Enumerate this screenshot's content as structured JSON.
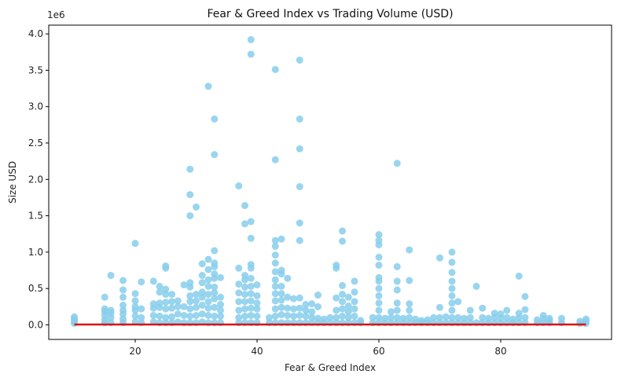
{
  "chart_data": {
    "type": "scatter",
    "title": "Fear & Greed Index vs Trading Volume (USD)",
    "xlabel": "Fear & Greed Index",
    "ylabel": "Size USD",
    "y_offset_label": "1e6",
    "xlim": [
      5.8,
      98.2
    ],
    "ylim": [
      -200000,
      4120000
    ],
    "x_ticks": [
      20,
      40,
      60,
      80
    ],
    "x_tick_labels": [
      "20",
      "40",
      "60",
      "80"
    ],
    "y_ticks": [
      0,
      500000,
      1000000,
      1500000,
      2000000,
      2500000,
      3000000,
      3500000,
      4000000
    ],
    "y_tick_labels": [
      "0.0",
      "0.5",
      "1.0",
      "1.5",
      "2.0",
      "2.5",
      "3.0",
      "3.5",
      "4.0"
    ],
    "grid": false,
    "legend": "none",
    "colors": {
      "points": "#87ceeb",
      "trend": "#dd1111"
    },
    "trend_line": {
      "x": [
        10,
        94
      ],
      "y": [
        5000,
        5000
      ]
    },
    "points": [
      {
        "x": 10,
        "y": 20000
      },
      {
        "x": 10,
        "y": 50000
      },
      {
        "x": 10,
        "y": 80000
      },
      {
        "x": 10,
        "y": 110000
      },
      {
        "x": 15,
        "y": 30000
      },
      {
        "x": 15,
        "y": 70000
      },
      {
        "x": 15,
        "y": 130000
      },
      {
        "x": 15,
        "y": 180000
      },
      {
        "x": 15,
        "y": 220000
      },
      {
        "x": 15,
        "y": 380000
      },
      {
        "x": 16,
        "y": 30000
      },
      {
        "x": 16,
        "y": 100000
      },
      {
        "x": 16,
        "y": 160000
      },
      {
        "x": 16,
        "y": 200000
      },
      {
        "x": 16,
        "y": 680000
      },
      {
        "x": 18,
        "y": 30000
      },
      {
        "x": 18,
        "y": 80000
      },
      {
        "x": 18,
        "y": 150000
      },
      {
        "x": 18,
        "y": 200000
      },
      {
        "x": 18,
        "y": 270000
      },
      {
        "x": 18,
        "y": 380000
      },
      {
        "x": 18,
        "y": 480000
      },
      {
        "x": 18,
        "y": 610000
      },
      {
        "x": 20,
        "y": 40000
      },
      {
        "x": 20,
        "y": 120000
      },
      {
        "x": 20,
        "y": 200000
      },
      {
        "x": 20,
        "y": 250000
      },
      {
        "x": 20,
        "y": 330000
      },
      {
        "x": 20,
        "y": 430000
      },
      {
        "x": 20,
        "y": 1120000
      },
      {
        "x": 21,
        "y": 30000
      },
      {
        "x": 21,
        "y": 100000
      },
      {
        "x": 21,
        "y": 220000
      },
      {
        "x": 21,
        "y": 590000
      },
      {
        "x": 23,
        "y": 40000
      },
      {
        "x": 23,
        "y": 130000
      },
      {
        "x": 23,
        "y": 230000
      },
      {
        "x": 23,
        "y": 290000
      },
      {
        "x": 23,
        "y": 600000
      },
      {
        "x": 24,
        "y": 30000
      },
      {
        "x": 24,
        "y": 120000
      },
      {
        "x": 24,
        "y": 240000
      },
      {
        "x": 24,
        "y": 300000
      },
      {
        "x": 24,
        "y": 450000
      },
      {
        "x": 24,
        "y": 530000
      },
      {
        "x": 25,
        "y": 30000
      },
      {
        "x": 25,
        "y": 100000
      },
      {
        "x": 25,
        "y": 220000
      },
      {
        "x": 25,
        "y": 310000
      },
      {
        "x": 25,
        "y": 420000
      },
      {
        "x": 25,
        "y": 490000
      },
      {
        "x": 25,
        "y": 780000
      },
      {
        "x": 25,
        "y": 810000
      },
      {
        "x": 26,
        "y": 30000
      },
      {
        "x": 26,
        "y": 110000
      },
      {
        "x": 26,
        "y": 230000
      },
      {
        "x": 26,
        "y": 320000
      },
      {
        "x": 26,
        "y": 420000
      },
      {
        "x": 27,
        "y": 40000
      },
      {
        "x": 27,
        "y": 150000
      },
      {
        "x": 27,
        "y": 250000
      },
      {
        "x": 27,
        "y": 330000
      },
      {
        "x": 28,
        "y": 30000
      },
      {
        "x": 28,
        "y": 130000
      },
      {
        "x": 28,
        "y": 250000
      },
      {
        "x": 28,
        "y": 550000
      },
      {
        "x": 29,
        "y": 30000
      },
      {
        "x": 29,
        "y": 120000
      },
      {
        "x": 29,
        "y": 220000
      },
      {
        "x": 29,
        "y": 320000
      },
      {
        "x": 29,
        "y": 400000
      },
      {
        "x": 29,
        "y": 520000
      },
      {
        "x": 29,
        "y": 580000
      },
      {
        "x": 29,
        "y": 1500000
      },
      {
        "x": 29,
        "y": 1790000
      },
      {
        "x": 29,
        "y": 2140000
      },
      {
        "x": 30,
        "y": 30000
      },
      {
        "x": 30,
        "y": 130000
      },
      {
        "x": 30,
        "y": 240000
      },
      {
        "x": 30,
        "y": 330000
      },
      {
        "x": 30,
        "y": 420000
      },
      {
        "x": 30,
        "y": 1620000
      },
      {
        "x": 31,
        "y": 40000
      },
      {
        "x": 31,
        "y": 150000
      },
      {
        "x": 31,
        "y": 270000
      },
      {
        "x": 31,
        "y": 380000
      },
      {
        "x": 31,
        "y": 450000
      },
      {
        "x": 31,
        "y": 580000
      },
      {
        "x": 31,
        "y": 680000
      },
      {
        "x": 31,
        "y": 840000
      },
      {
        "x": 32,
        "y": 30000
      },
      {
        "x": 32,
        "y": 130000
      },
      {
        "x": 32,
        "y": 230000
      },
      {
        "x": 32,
        "y": 320000
      },
      {
        "x": 32,
        "y": 420000
      },
      {
        "x": 32,
        "y": 530000
      },
      {
        "x": 32,
        "y": 620000
      },
      {
        "x": 32,
        "y": 760000
      },
      {
        "x": 32,
        "y": 900000
      },
      {
        "x": 32,
        "y": 3280000
      },
      {
        "x": 33,
        "y": 30000
      },
      {
        "x": 33,
        "y": 120000
      },
      {
        "x": 33,
        "y": 240000
      },
      {
        "x": 33,
        "y": 360000
      },
      {
        "x": 33,
        "y": 440000
      },
      {
        "x": 33,
        "y": 520000
      },
      {
        "x": 33,
        "y": 640000
      },
      {
        "x": 33,
        "y": 700000
      },
      {
        "x": 33,
        "y": 800000
      },
      {
        "x": 33,
        "y": 850000
      },
      {
        "x": 33,
        "y": 1020000
      },
      {
        "x": 33,
        "y": 2340000
      },
      {
        "x": 33,
        "y": 2830000
      },
      {
        "x": 34,
        "y": 30000
      },
      {
        "x": 34,
        "y": 120000
      },
      {
        "x": 34,
        "y": 200000
      },
      {
        "x": 34,
        "y": 280000
      },
      {
        "x": 34,
        "y": 380000
      },
      {
        "x": 34,
        "y": 650000
      },
      {
        "x": 37,
        "y": 30000
      },
      {
        "x": 37,
        "y": 100000
      },
      {
        "x": 37,
        "y": 200000
      },
      {
        "x": 37,
        "y": 320000
      },
      {
        "x": 37,
        "y": 440000
      },
      {
        "x": 37,
        "y": 560000
      },
      {
        "x": 37,
        "y": 780000
      },
      {
        "x": 37,
        "y": 1910000
      },
      {
        "x": 38,
        "y": 30000
      },
      {
        "x": 38,
        "y": 120000
      },
      {
        "x": 38,
        "y": 220000
      },
      {
        "x": 38,
        "y": 320000
      },
      {
        "x": 38,
        "y": 420000
      },
      {
        "x": 38,
        "y": 520000
      },
      {
        "x": 38,
        "y": 620000
      },
      {
        "x": 38,
        "y": 680000
      },
      {
        "x": 38,
        "y": 1390000
      },
      {
        "x": 38,
        "y": 1640000
      },
      {
        "x": 39,
        "y": 30000
      },
      {
        "x": 39,
        "y": 130000
      },
      {
        "x": 39,
        "y": 230000
      },
      {
        "x": 39,
        "y": 330000
      },
      {
        "x": 39,
        "y": 430000
      },
      {
        "x": 39,
        "y": 530000
      },
      {
        "x": 39,
        "y": 640000
      },
      {
        "x": 39,
        "y": 780000
      },
      {
        "x": 39,
        "y": 830000
      },
      {
        "x": 39,
        "y": 1190000
      },
      {
        "x": 39,
        "y": 1420000
      },
      {
        "x": 39,
        "y": 3720000
      },
      {
        "x": 39,
        "y": 3920000
      },
      {
        "x": 40,
        "y": 30000
      },
      {
        "x": 40,
        "y": 120000
      },
      {
        "x": 40,
        "y": 220000
      },
      {
        "x": 40,
        "y": 300000
      },
      {
        "x": 40,
        "y": 400000
      },
      {
        "x": 40,
        "y": 550000
      },
      {
        "x": 42,
        "y": 30000
      },
      {
        "x": 42,
        "y": 100000
      },
      {
        "x": 43,
        "y": 30000
      },
      {
        "x": 43,
        "y": 120000
      },
      {
        "x": 43,
        "y": 220000
      },
      {
        "x": 43,
        "y": 330000
      },
      {
        "x": 43,
        "y": 430000
      },
      {
        "x": 43,
        "y": 530000
      },
      {
        "x": 43,
        "y": 620000
      },
      {
        "x": 43,
        "y": 730000
      },
      {
        "x": 43,
        "y": 850000
      },
      {
        "x": 43,
        "y": 960000
      },
      {
        "x": 43,
        "y": 1080000
      },
      {
        "x": 43,
        "y": 1160000
      },
      {
        "x": 43,
        "y": 2270000
      },
      {
        "x": 43,
        "y": 3510000
      },
      {
        "x": 44,
        "y": 30000
      },
      {
        "x": 44,
        "y": 140000
      },
      {
        "x": 44,
        "y": 240000
      },
      {
        "x": 44,
        "y": 340000
      },
      {
        "x": 44,
        "y": 430000
      },
      {
        "x": 44,
        "y": 530000
      },
      {
        "x": 44,
        "y": 700000
      },
      {
        "x": 44,
        "y": 750000
      },
      {
        "x": 44,
        "y": 1180000
      },
      {
        "x": 45,
        "y": 30000
      },
      {
        "x": 45,
        "y": 130000
      },
      {
        "x": 45,
        "y": 230000
      },
      {
        "x": 45,
        "y": 380000
      },
      {
        "x": 45,
        "y": 640000
      },
      {
        "x": 46,
        "y": 30000
      },
      {
        "x": 46,
        "y": 120000
      },
      {
        "x": 46,
        "y": 220000
      },
      {
        "x": 46,
        "y": 360000
      },
      {
        "x": 47,
        "y": 30000
      },
      {
        "x": 47,
        "y": 130000
      },
      {
        "x": 47,
        "y": 230000
      },
      {
        "x": 47,
        "y": 370000
      },
      {
        "x": 47,
        "y": 1160000
      },
      {
        "x": 47,
        "y": 1400000
      },
      {
        "x": 47,
        "y": 1900000
      },
      {
        "x": 47,
        "y": 2420000
      },
      {
        "x": 47,
        "y": 2830000
      },
      {
        "x": 47,
        "y": 3640000
      },
      {
        "x": 48,
        "y": 30000
      },
      {
        "x": 48,
        "y": 120000
      },
      {
        "x": 48,
        "y": 200000
      },
      {
        "x": 48,
        "y": 280000
      },
      {
        "x": 49,
        "y": 30000
      },
      {
        "x": 49,
        "y": 100000
      },
      {
        "x": 49,
        "y": 180000
      },
      {
        "x": 49,
        "y": 290000
      },
      {
        "x": 50,
        "y": 30000
      },
      {
        "x": 50,
        "y": 90000
      },
      {
        "x": 50,
        "y": 250000
      },
      {
        "x": 50,
        "y": 410000
      },
      {
        "x": 51,
        "y": 30000
      },
      {
        "x": 51,
        "y": 80000
      },
      {
        "x": 52,
        "y": 30000
      },
      {
        "x": 52,
        "y": 100000
      },
      {
        "x": 53,
        "y": 30000
      },
      {
        "x": 53,
        "y": 100000
      },
      {
        "x": 53,
        "y": 200000
      },
      {
        "x": 53,
        "y": 370000
      },
      {
        "x": 53,
        "y": 780000
      },
      {
        "x": 53,
        "y": 820000
      },
      {
        "x": 54,
        "y": 30000
      },
      {
        "x": 54,
        "y": 120000
      },
      {
        "x": 54,
        "y": 220000
      },
      {
        "x": 54,
        "y": 320000
      },
      {
        "x": 54,
        "y": 420000
      },
      {
        "x": 54,
        "y": 540000
      },
      {
        "x": 54,
        "y": 1150000
      },
      {
        "x": 54,
        "y": 1290000
      },
      {
        "x": 55,
        "y": 30000
      },
      {
        "x": 55,
        "y": 100000
      },
      {
        "x": 55,
        "y": 180000
      },
      {
        "x": 55,
        "y": 260000
      },
      {
        "x": 55,
        "y": 380000
      },
      {
        "x": 56,
        "y": 30000
      },
      {
        "x": 56,
        "y": 120000
      },
      {
        "x": 56,
        "y": 220000
      },
      {
        "x": 56,
        "y": 320000
      },
      {
        "x": 56,
        "y": 450000
      },
      {
        "x": 56,
        "y": 600000
      },
      {
        "x": 57,
        "y": 30000
      },
      {
        "x": 57,
        "y": 60000
      },
      {
        "x": 59,
        "y": 30000
      },
      {
        "x": 59,
        "y": 100000
      },
      {
        "x": 60,
        "y": 30000
      },
      {
        "x": 60,
        "y": 100000
      },
      {
        "x": 60,
        "y": 200000
      },
      {
        "x": 60,
        "y": 300000
      },
      {
        "x": 60,
        "y": 400000
      },
      {
        "x": 60,
        "y": 500000
      },
      {
        "x": 60,
        "y": 600000
      },
      {
        "x": 60,
        "y": 650000
      },
      {
        "x": 60,
        "y": 820000
      },
      {
        "x": 60,
        "y": 930000
      },
      {
        "x": 60,
        "y": 1100000
      },
      {
        "x": 60,
        "y": 1160000
      },
      {
        "x": 60,
        "y": 1240000
      },
      {
        "x": 61,
        "y": 30000
      },
      {
        "x": 61,
        "y": 90000
      },
      {
        "x": 62,
        "y": 30000
      },
      {
        "x": 62,
        "y": 100000
      },
      {
        "x": 62,
        "y": 180000
      },
      {
        "x": 63,
        "y": 30000
      },
      {
        "x": 63,
        "y": 100000
      },
      {
        "x": 63,
        "y": 200000
      },
      {
        "x": 63,
        "y": 300000
      },
      {
        "x": 63,
        "y": 480000
      },
      {
        "x": 63,
        "y": 600000
      },
      {
        "x": 63,
        "y": 800000
      },
      {
        "x": 63,
        "y": 2220000
      },
      {
        "x": 64,
        "y": 30000
      },
      {
        "x": 64,
        "y": 90000
      },
      {
        "x": 65,
        "y": 30000
      },
      {
        "x": 65,
        "y": 100000
      },
      {
        "x": 65,
        "y": 200000
      },
      {
        "x": 65,
        "y": 290000
      },
      {
        "x": 65,
        "y": 610000
      },
      {
        "x": 65,
        "y": 1030000
      },
      {
        "x": 66,
        "y": 30000
      },
      {
        "x": 66,
        "y": 80000
      },
      {
        "x": 67,
        "y": 30000
      },
      {
        "x": 67,
        "y": 60000
      },
      {
        "x": 68,
        "y": 30000
      },
      {
        "x": 68,
        "y": 70000
      },
      {
        "x": 69,
        "y": 30000
      },
      {
        "x": 69,
        "y": 100000
      },
      {
        "x": 70,
        "y": 30000
      },
      {
        "x": 70,
        "y": 100000
      },
      {
        "x": 70,
        "y": 240000
      },
      {
        "x": 70,
        "y": 920000
      },
      {
        "x": 71,
        "y": 30000
      },
      {
        "x": 71,
        "y": 110000
      },
      {
        "x": 72,
        "y": 30000
      },
      {
        "x": 72,
        "y": 100000
      },
      {
        "x": 72,
        "y": 200000
      },
      {
        "x": 72,
        "y": 300000
      },
      {
        "x": 72,
        "y": 400000
      },
      {
        "x": 72,
        "y": 500000
      },
      {
        "x": 72,
        "y": 600000
      },
      {
        "x": 72,
        "y": 720000
      },
      {
        "x": 72,
        "y": 860000
      },
      {
        "x": 72,
        "y": 1000000
      },
      {
        "x": 73,
        "y": 30000
      },
      {
        "x": 73,
        "y": 100000
      },
      {
        "x": 73,
        "y": 320000
      },
      {
        "x": 74,
        "y": 30000
      },
      {
        "x": 74,
        "y": 90000
      },
      {
        "x": 75,
        "y": 30000
      },
      {
        "x": 75,
        "y": 100000
      },
      {
        "x": 75,
        "y": 200000
      },
      {
        "x": 76,
        "y": 30000
      },
      {
        "x": 76,
        "y": 530000
      },
      {
        "x": 77,
        "y": 30000
      },
      {
        "x": 77,
        "y": 100000
      },
      {
        "x": 77,
        "y": 230000
      },
      {
        "x": 78,
        "y": 30000
      },
      {
        "x": 78,
        "y": 90000
      },
      {
        "x": 79,
        "y": 30000
      },
      {
        "x": 79,
        "y": 100000
      },
      {
        "x": 79,
        "y": 160000
      },
      {
        "x": 80,
        "y": 30000
      },
      {
        "x": 80,
        "y": 90000
      },
      {
        "x": 80,
        "y": 150000
      },
      {
        "x": 81,
        "y": 30000
      },
      {
        "x": 81,
        "y": 100000
      },
      {
        "x": 81,
        "y": 200000
      },
      {
        "x": 82,
        "y": 30000
      },
      {
        "x": 82,
        "y": 80000
      },
      {
        "x": 83,
        "y": 30000
      },
      {
        "x": 83,
        "y": 100000
      },
      {
        "x": 83,
        "y": 160000
      },
      {
        "x": 83,
        "y": 670000
      },
      {
        "x": 84,
        "y": 30000
      },
      {
        "x": 84,
        "y": 100000
      },
      {
        "x": 84,
        "y": 210000
      },
      {
        "x": 84,
        "y": 390000
      },
      {
        "x": 86,
        "y": 30000
      },
      {
        "x": 86,
        "y": 70000
      },
      {
        "x": 87,
        "y": 30000
      },
      {
        "x": 87,
        "y": 80000
      },
      {
        "x": 87,
        "y": 130000
      },
      {
        "x": 88,
        "y": 30000
      },
      {
        "x": 88,
        "y": 60000
      },
      {
        "x": 88,
        "y": 90000
      },
      {
        "x": 90,
        "y": 30000
      },
      {
        "x": 90,
        "y": 90000
      },
      {
        "x": 93,
        "y": 20000
      },
      {
        "x": 93,
        "y": 50000
      },
      {
        "x": 94,
        "y": 20000
      },
      {
        "x": 94,
        "y": 50000
      },
      {
        "x": 94,
        "y": 80000
      }
    ]
  }
}
